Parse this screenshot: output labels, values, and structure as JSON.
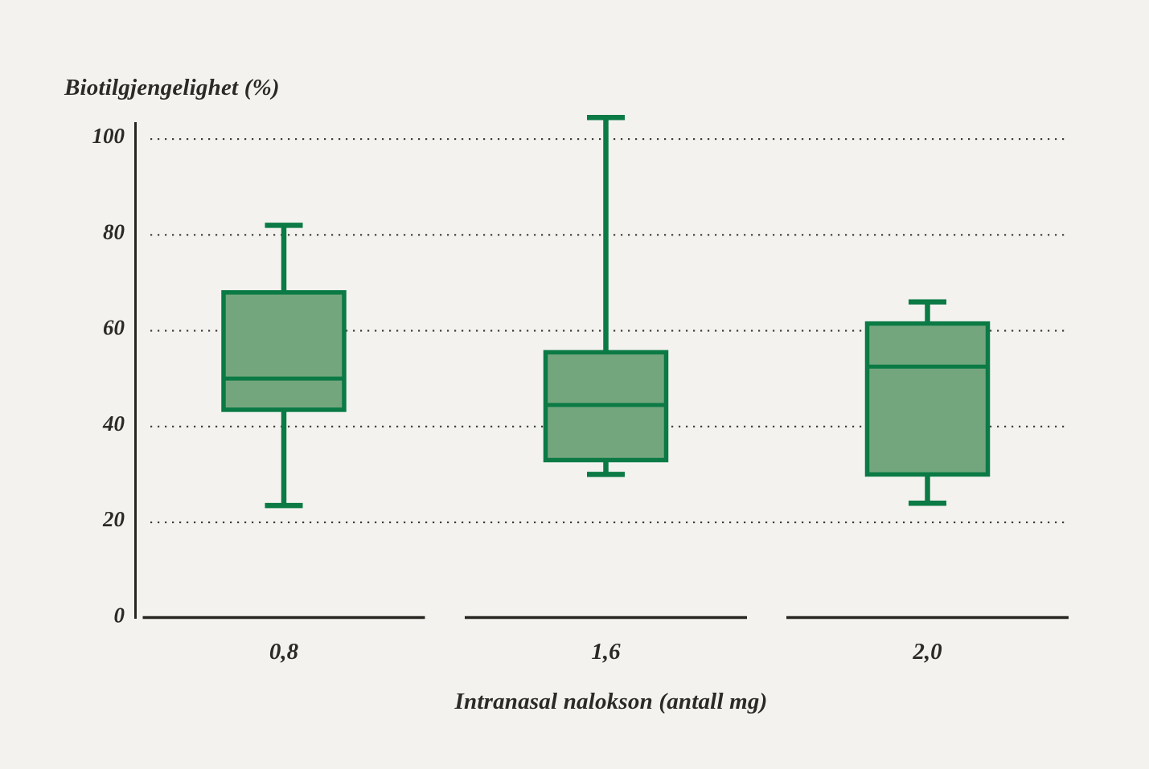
{
  "chart_data": {
    "type": "boxplot",
    "title": "Biotilgjengelighet (%)",
    "xlabel": "Intranasal nalokson (antall mg)",
    "ylabel": "Biotilgjengelighet (%)",
    "categories": [
      "0,8",
      "1,6",
      "2,0"
    ],
    "yticks": [
      0,
      20,
      40,
      60,
      80,
      100
    ],
    "ylim": [
      0,
      105
    ],
    "grid": {
      "style": "dotted-horizontal",
      "at_values": [
        20,
        40,
        60,
        80,
        100
      ]
    },
    "legend": "none",
    "series": [
      {
        "category": "0,8",
        "whisker_low": 23.5,
        "q1": 43.5,
        "median": 50,
        "q3": 68,
        "whisker_high": 82
      },
      {
        "category": "1,6",
        "whisker_low": 30,
        "q1": 33,
        "median": 44.5,
        "q3": 55.5,
        "whisker_high": 104.5
      },
      {
        "category": "2,0",
        "whisker_low": 24,
        "q1": 30,
        "median": 52.5,
        "q3": 61.5,
        "whisker_high": 66
      }
    ],
    "colors": {
      "background": "#f3f2ef",
      "box_fill": "#74a67e",
      "box_stroke": "#0b7a45",
      "axis": "#26251f",
      "grid_dots": "#3c3b36",
      "text": "#2b2a26"
    }
  }
}
